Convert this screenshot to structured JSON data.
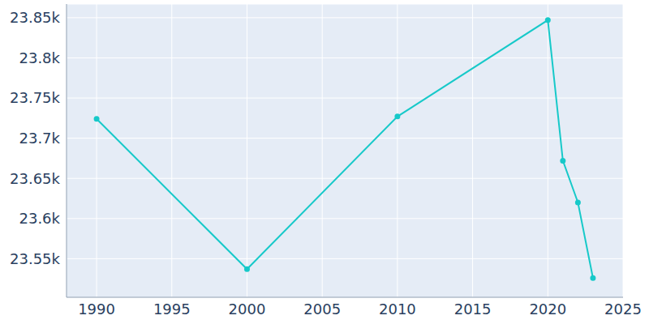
{
  "chart_data": {
    "type": "line",
    "x": [
      1990,
      2000,
      2010,
      2020,
      2021,
      2022,
      2023
    ],
    "values": [
      23724,
      23537,
      23727,
      23847,
      23672,
      23620,
      23526
    ],
    "color": "#17c9c9",
    "marker": "circle",
    "xlim": [
      1988,
      2025
    ],
    "xticks": [
      1990,
      1995,
      2000,
      2005,
      2010,
      2015,
      2020,
      2025
    ],
    "ylim": [
      23502,
      23867
    ],
    "yticks": [
      {
        "value": 23550,
        "label": "23.55k"
      },
      {
        "value": 23600,
        "label": "23.6k"
      },
      {
        "value": 23650,
        "label": "23.65k"
      },
      {
        "value": 23700,
        "label": "23.7k"
      },
      {
        "value": 23750,
        "label": "23.75k"
      },
      {
        "value": 23800,
        "label": "23.8k"
      },
      {
        "value": 23850,
        "label": "23.85k"
      }
    ],
    "grid": true
  }
}
